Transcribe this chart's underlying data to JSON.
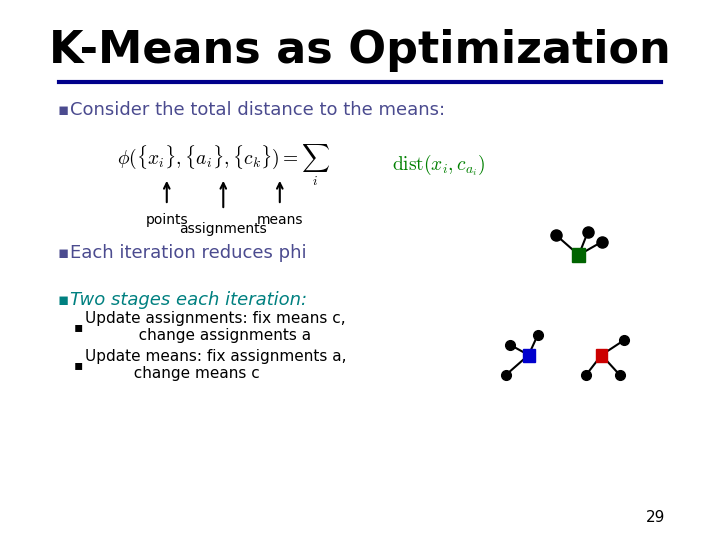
{
  "title": "K-Means as Optimization",
  "background_color": "#ffffff",
  "title_color": "#000000",
  "title_fontsize": 32,
  "separator_color": "#00008B",
  "bullet_color": "#4b4b8f",
  "bullet1_text": "Consider the total distance to the means:",
  "bullet2_text": "Each iteration reduces phi",
  "bullet3_text": "Two stages each iteration:",
  "sub_bullet1": "Update assignments: fix means c,\n           change assignments a",
  "sub_bullet2": "Update means: fix assignments a,\n          change means c",
  "formula_color": "#000000",
  "rhs_color": "#008000",
  "label_points": "points",
  "label_assignments": "assignments",
  "label_means": "means",
  "page_number": "29"
}
